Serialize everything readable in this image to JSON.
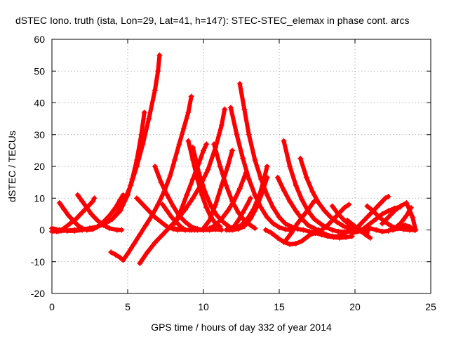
{
  "chart_data": {
    "type": "scatter",
    "title": "dSTEC Iono. truth (ista, Lon=29, Lat=41, h=147): STEC-STEC_elemax in phase cont. arcs",
    "xlabel": "GPS time / hours of day 332 of year 2014",
    "ylabel": "dSTEC  / TECUs",
    "xlim": [
      0,
      25
    ],
    "ylim": [
      -20,
      60
    ],
    "x_ticks": [
      0,
      5,
      10,
      15,
      20,
      25
    ],
    "y_ticks": [
      -20,
      -10,
      0,
      10,
      20,
      30,
      40,
      50,
      60
    ],
    "x_tick_labels": [
      "0",
      "5",
      "10",
      "15",
      "20",
      "25"
    ],
    "y_tick_labels": [
      "-20",
      "-10",
      "0",
      "10",
      "20",
      "30",
      "40",
      "50",
      "60"
    ],
    "grid": true,
    "marker": "plus",
    "color": "#ff0000",
    "series": [
      {
        "x": [
          0.0,
          0.3,
          0.6,
          1.0,
          1.5,
          2.0,
          2.5,
          3.0,
          3.5,
          4.0,
          4.4,
          4.8,
          5.2,
          5.6,
          6.0,
          6.4,
          6.8,
          7.0,
          7.1
        ],
        "y": [
          -0.5,
          -0.4,
          -0.3,
          -0.2,
          0.0,
          0.2,
          0.5,
          1.0,
          2.0,
          3.5,
          6.0,
          9.5,
          14.0,
          20.0,
          27.0,
          35.0,
          44.0,
          50.0,
          55.0
        ]
      },
      {
        "x": [
          0.0,
          0.5,
          1.0,
          1.5,
          2.0,
          2.5,
          3.0,
          3.5,
          4.0,
          4.5,
          5.0,
          5.3,
          5.6,
          5.9,
          6.1
        ],
        "y": [
          0.5,
          0.0,
          -0.3,
          -0.3,
          0.0,
          0.5,
          1.0,
          2.0,
          3.5,
          6.0,
          11.0,
          16.0,
          22.0,
          30.0,
          37.0
        ]
      },
      {
        "x": [
          0.5,
          0.8,
          1.1,
          1.4,
          1.7,
          2.0,
          2.3,
          2.7,
          3.0,
          3.4,
          3.8,
          4.2,
          4.5,
          4.7
        ],
        "y": [
          8.5,
          6.5,
          4.5,
          3.0,
          1.5,
          0.5,
          0.0,
          0.2,
          1.0,
          2.5,
          4.5,
          7.0,
          9.5,
          11.0
        ]
      },
      {
        "x": [
          0.4,
          0.8,
          1.2,
          1.6,
          2.0,
          2.4,
          2.7,
          2.8
        ],
        "y": [
          -0.5,
          0.5,
          2.0,
          3.5,
          5.5,
          7.5,
          9.0,
          10.0
        ]
      },
      {
        "x": [
          1.7,
          2.0,
          2.3,
          2.6,
          3.0,
          3.4,
          3.8,
          4.3,
          4.6
        ],
        "y": [
          11.0,
          9.0,
          7.0,
          5.0,
          3.0,
          1.5,
          0.5,
          0.0,
          0.0
        ]
      },
      {
        "x": [
          3.9,
          4.2,
          4.5,
          4.7
        ],
        "y": [
          -7.0,
          -7.8,
          -8.7,
          -9.5
        ]
      },
      {
        "x": [
          4.7,
          5.0,
          5.4,
          5.8,
          6.2,
          6.6,
          7.0,
          7.4,
          7.8,
          8.1,
          8.4,
          8.7,
          9.0,
          9.2
        ],
        "y": [
          -9.5,
          -7.5,
          -4.5,
          -1.5,
          1.5,
          4.5,
          8.0,
          12.0,
          17.0,
          22.0,
          27.0,
          32.0,
          37.0,
          42.0
        ]
      },
      {
        "x": [
          5.8,
          6.3,
          6.8,
          7.3,
          7.8,
          8.3,
          8.8,
          9.3,
          9.8,
          10.3,
          10.8,
          11.2,
          11.4
        ],
        "y": [
          -10.5,
          -7.0,
          -4.0,
          -1.5,
          1.0,
          3.5,
          6.5,
          10.0,
          14.0,
          19.0,
          26.0,
          33.0,
          38.0
        ]
      },
      {
        "x": [
          5.6,
          6.0,
          6.4,
          6.8,
          7.2,
          7.6,
          8.0,
          8.3
        ],
        "y": [
          10.0,
          8.0,
          6.0,
          4.0,
          2.5,
          1.0,
          0.3,
          0.0
        ]
      },
      {
        "x": [
          6.8,
          7.2,
          7.6,
          8.0,
          8.4,
          8.8,
          9.2,
          9.6,
          10.0,
          10.4,
          10.8,
          11.2
        ],
        "y": [
          20.0,
          15.0,
          11.0,
          7.5,
          4.5,
          2.5,
          1.0,
          0.3,
          0.0,
          0.0,
          0.2,
          0.0
        ]
      },
      {
        "x": [
          7.3,
          7.6,
          7.9,
          8.2,
          8.5,
          8.8,
          9.1,
          9.4
        ],
        "y": [
          8.0,
          6.0,
          4.0,
          2.5,
          1.0,
          0.0,
          0.0,
          0.0
        ]
      },
      {
        "x": [
          8.0,
          8.4,
          8.8,
          9.2,
          9.6,
          10.0,
          10.4,
          10.8,
          11.2,
          11.6,
          12.0,
          12.4,
          12.8
        ],
        "y": [
          0.5,
          0.2,
          0.0,
          0.0,
          0.0,
          0.0,
          0.5,
          1.5,
          3.5,
          6.0,
          9.0,
          13.0,
          18.0
        ]
      },
      {
        "x": [
          8.1,
          8.5,
          8.9,
          9.3,
          9.7,
          10.0,
          10.2
        ],
        "y": [
          2.0,
          6.0,
          11.0,
          16.0,
          21.0,
          25.0,
          27.0
        ]
      },
      {
        "x": [
          9.0,
          9.3,
          9.6,
          9.9,
          10.2,
          10.5,
          10.8,
          11.1
        ],
        "y": [
          28.0,
          22.0,
          16.0,
          11.0,
          7.0,
          4.0,
          2.0,
          1.0
        ]
      },
      {
        "x": [
          9.3,
          9.7,
          10.1,
          10.5,
          10.9,
          11.3,
          11.7,
          12.0
        ],
        "y": [
          26.0,
          18.0,
          12.0,
          7.5,
          4.5,
          2.5,
          1.0,
          0.5
        ]
      },
      {
        "x": [
          10.7,
          11.1,
          11.5,
          11.9,
          12.3,
          12.7,
          13.1,
          13.4
        ],
        "y": [
          27.0,
          20.0,
          14.0,
          9.0,
          5.5,
          3.0,
          1.5,
          0.5
        ]
      },
      {
        "x": [
          10.0,
          10.4,
          10.8,
          11.2,
          11.6,
          11.9
        ],
        "y": [
          0.5,
          3.0,
          8.0,
          14.0,
          20.0,
          25.0
        ]
      },
      {
        "x": [
          11.8,
          12.2,
          12.6,
          13.0,
          13.4,
          13.8,
          14.2,
          14.6,
          15.0,
          15.4,
          15.8
        ],
        "y": [
          38.5,
          30.0,
          22.5,
          16.0,
          11.0,
          7.0,
          4.0,
          2.0,
          0.8,
          0.2,
          0.0
        ]
      },
      {
        "x": [
          12.4,
          12.7,
          13.0,
          13.4,
          13.8,
          14.2,
          14.6,
          15.0,
          15.4,
          15.8,
          16.2
        ],
        "y": [
          46.0,
          38.0,
          30.0,
          22.0,
          16.0,
          11.0,
          7.0,
          4.0,
          2.0,
          1.0,
          0.5
        ]
      },
      {
        "x": [
          11.5,
          11.9,
          12.3,
          12.7,
          13.1,
          13.5,
          13.9,
          14.2
        ],
        "y": [
          0.0,
          0.0,
          0.3,
          1.2,
          3.5,
          7.0,
          12.0,
          16.5
        ]
      },
      {
        "x": [
          11.7,
          12.1,
          12.5,
          12.9,
          13.3,
          13.7,
          14.0,
          14.2
        ],
        "y": [
          0.0,
          0.5,
          1.5,
          3.5,
          6.5,
          11.0,
          16.0,
          20.0
        ]
      },
      {
        "x": [
          12.0,
          12.3,
          12.6,
          12.9,
          13.1
        ],
        "y": [
          1.0,
          3.0,
          5.5,
          8.0,
          10.0
        ]
      },
      {
        "x": [
          14.1,
          14.5,
          14.9,
          15.3,
          15.7,
          16.1,
          16.5,
          16.9,
          17.3,
          17.6
        ],
        "y": [
          0.0,
          -1.0,
          -2.5,
          -3.8,
          -4.5,
          -4.3,
          -3.5,
          -2.0,
          -0.8,
          0.0
        ]
      },
      {
        "x": [
          14.9,
          15.3,
          15.7,
          16.1,
          16.5,
          16.9,
          17.3,
          17.7,
          18.1,
          18.5,
          18.9,
          19.3
        ],
        "y": [
          16.5,
          12.5,
          9.0,
          6.0,
          3.5,
          1.5,
          0.5,
          -0.5,
          -1.5,
          -2.0,
          -2.0,
          -1.5
        ]
      },
      {
        "x": [
          15.3,
          15.7,
          16.1,
          16.5,
          16.9,
          17.3,
          17.7,
          18.1,
          18.5,
          18.9,
          19.3,
          19.7,
          20.1
        ],
        "y": [
          28.0,
          20.0,
          14.0,
          9.5,
          6.0,
          3.5,
          2.0,
          0.8,
          0.0,
          -0.5,
          -0.6,
          -0.5,
          0.0
        ]
      },
      {
        "x": [
          16.4,
          16.8,
          17.2,
          17.6,
          18.0,
          18.4,
          18.8,
          19.2,
          19.6,
          20.0,
          20.4,
          20.8
        ],
        "y": [
          22.5,
          16.5,
          12.0,
          8.5,
          6.0,
          4.0,
          2.5,
          1.3,
          0.5,
          0.0,
          -0.5,
          -1.0
        ]
      },
      {
        "x": [
          16.2,
          16.6,
          17.0,
          17.4,
          17.8,
          18.2,
          18.6,
          19.0,
          19.4,
          19.8
        ],
        "y": [
          0.3,
          0.0,
          -0.5,
          -1.0,
          -1.5,
          -2.0,
          -2.3,
          -2.5,
          -2.3,
          -2.0
        ]
      },
      {
        "x": [
          15.4,
          15.8,
          16.2,
          16.6,
          17.0,
          17.3
        ],
        "y": [
          -3.5,
          -1.0,
          2.0,
          4.5,
          7.0,
          9.0
        ]
      },
      {
        "x": [
          17.0,
          17.4,
          17.8,
          18.2,
          18.6,
          19.0,
          19.3,
          19.6
        ],
        "y": [
          -1.5,
          -1.0,
          0.0,
          1.5,
          3.5,
          5.5,
          7.0,
          8.0
        ]
      },
      {
        "x": [
          18.5,
          18.9,
          19.3,
          19.7,
          20.1,
          20.5,
          20.9
        ],
        "y": [
          7.5,
          5.0,
          3.0,
          1.5,
          0.5,
          0.0,
          0.0
        ]
      },
      {
        "x": [
          19.8,
          20.2,
          20.6,
          21.0,
          21.4,
          21.8,
          22.2,
          22.6,
          23.0
        ],
        "y": [
          -1.0,
          -0.5,
          0.5,
          2.0,
          3.5,
          5.0,
          6.0,
          6.8,
          7.3
        ]
      },
      {
        "x": [
          20.0,
          20.4,
          20.8,
          21.2,
          21.6,
          22.0,
          22.2
        ],
        "y": [
          0.0,
          2.0,
          4.0,
          6.0,
          8.0,
          10.0,
          10.5
        ]
      },
      {
        "x": [
          20.8,
          21.2,
          21.6,
          22.0,
          22.4,
          22.8,
          23.2,
          23.6,
          24.0
        ],
        "y": [
          7.5,
          6.0,
          4.0,
          2.5,
          1.2,
          0.5,
          0.2,
          0.0,
          0.0
        ]
      },
      {
        "x": [
          21.0,
          21.4,
          21.8,
          22.2,
          22.6,
          23.0,
          23.4,
          23.7
        ],
        "y": [
          0.5,
          0.0,
          -0.5,
          -0.3,
          0.5,
          2.0,
          4.5,
          7.0
        ]
      },
      {
        "x": [
          21.8,
          22.2,
          22.6,
          23.0,
          23.4,
          23.8,
          24.0
        ],
        "y": [
          2.0,
          4.0,
          6.0,
          7.5,
          8.5,
          4.0,
          0.0
        ]
      },
      {
        "x": [
          19.5,
          19.9,
          20.3,
          20.7,
          21.0
        ],
        "y": [
          3.0,
          1.5,
          0.0,
          -1.5,
          -2.5
        ]
      },
      {
        "x": [
          22.5,
          22.9,
          23.3,
          23.6,
          23.9
        ],
        "y": [
          0.0,
          0.5,
          1.5,
          1.0,
          0.0
        ]
      }
    ]
  }
}
